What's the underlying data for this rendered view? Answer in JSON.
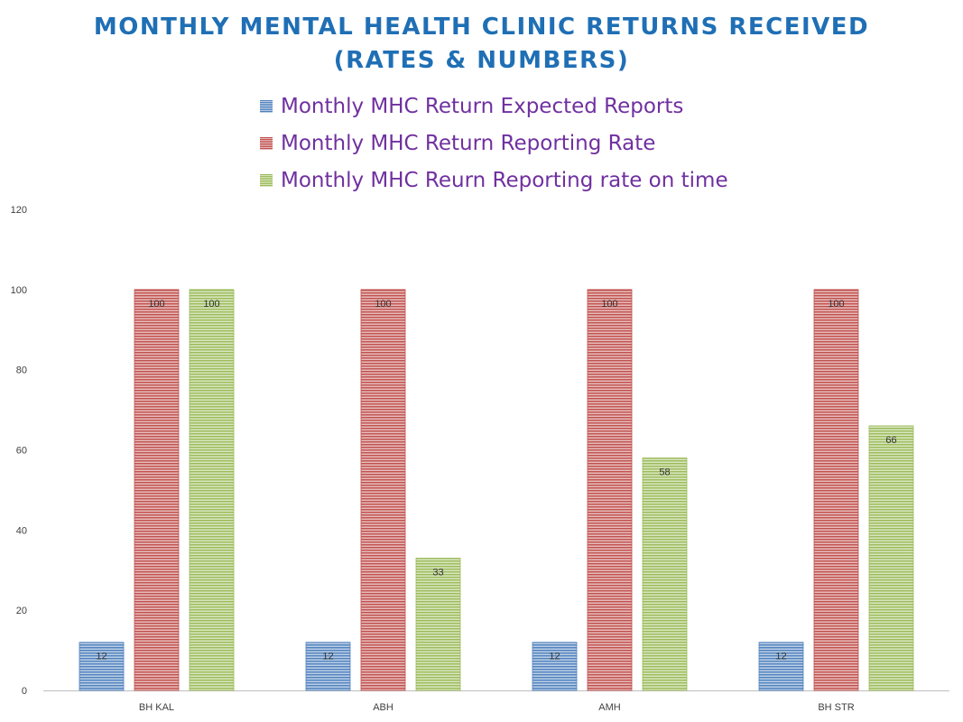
{
  "chart_data": {
    "type": "bar",
    "title_lines": [
      "MONTHLY MENTAL HEALTH CLINIC RETURNS RECEIVED",
      "(RATES & NUMBERS)"
    ],
    "categories": [
      "BH KAL",
      "ABH",
      "AMH",
      "BH STR"
    ],
    "series": [
      {
        "name": "Monthly MHC Return Expected Reports",
        "values": [
          12,
          12,
          12,
          12
        ],
        "color": "#4f81bd"
      },
      {
        "name": "Monthly MHC Return Reporting Rate",
        "values": [
          100,
          100,
          100,
          100
        ],
        "color": "#c0504d"
      },
      {
        "name": "Monthly MHC Reurn Reporting rate on time",
        "values": [
          100,
          33,
          58,
          66
        ],
        "color": "#9bbb59"
      }
    ],
    "ylim": [
      0,
      120
    ],
    "yticks": [
      0,
      20,
      40,
      60,
      80,
      100,
      120
    ],
    "legend_position": "top",
    "grid": false,
    "data_labels": true
  }
}
